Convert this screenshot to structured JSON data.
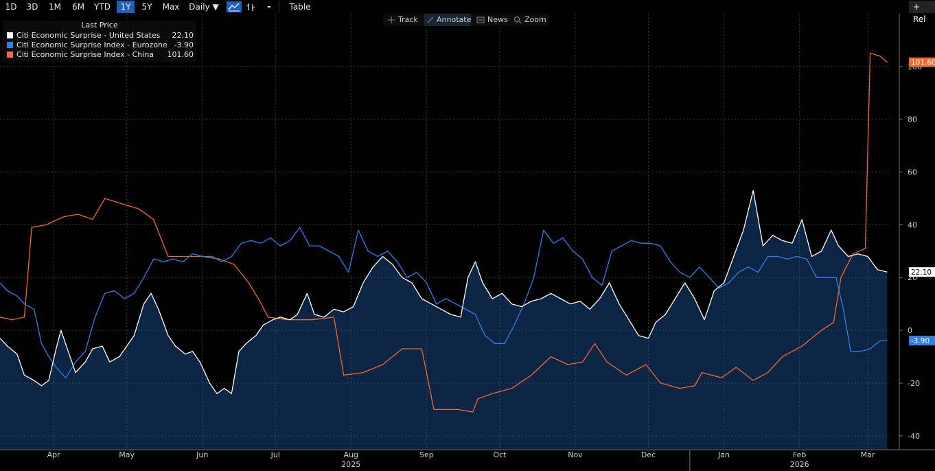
{
  "toolbar": {
    "ranges": [
      "1D",
      "3D",
      "1M",
      "6M",
      "YTD",
      "1Y",
      "5Y",
      "Max"
    ],
    "active_range": "1Y",
    "frequency": "Daily ▼",
    "table_label": "Table",
    "rel_label": "+ Rel"
  },
  "overlay": {
    "track": "Track",
    "annotate": "Annotate",
    "news": "News",
    "zoom": "Zoom"
  },
  "legend": {
    "header": "Last Price",
    "rows": [
      {
        "name": "Citi Economic Surprise - United States",
        "value": "22.10",
        "color": "#ffffff"
      },
      {
        "name": "Citi Economic Surprise Index - Eurozone",
        "value": "-3.90",
        "color": "#2f7fe8"
      },
      {
        "name": "Citi Economic Surprise Index - China",
        "value": "101.60",
        "color": "#ef6a32"
      }
    ]
  },
  "chart_data": {
    "type": "line",
    "x_range": [
      "2025-03-24",
      "2026-03-24"
    ],
    "ylim": [
      -45,
      120
    ],
    "yticks": [
      -40,
      -20,
      0,
      20,
      40,
      60,
      80,
      100
    ],
    "month_labels": [
      {
        "label": "Apr",
        "date": "2025-04-15"
      },
      {
        "label": "May",
        "date": "2025-05-15"
      },
      {
        "label": "Jun",
        "date": "2025-06-15"
      },
      {
        "label": "Jul",
        "date": "2025-07-15"
      },
      {
        "label": "Aug",
        "date": "2025-08-15"
      },
      {
        "label": "Sep",
        "date": "2025-09-15"
      },
      {
        "label": "Oct",
        "date": "2025-10-15"
      },
      {
        "label": "Nov",
        "date": "2025-11-15"
      },
      {
        "label": "Dec",
        "date": "2025-12-15"
      },
      {
        "label": "Jan",
        "date": "2026-01-15"
      },
      {
        "label": "Feb",
        "date": "2026-02-15"
      },
      {
        "label": "Mar",
        "date": "2026-03-15"
      }
    ],
    "year_labels": [
      {
        "label": "2025",
        "date": "2025-08-15"
      },
      {
        "label": "2026",
        "date": "2026-02-15"
      }
    ],
    "grid": true,
    "legend_position": "top-left",
    "series": [
      {
        "name": "Citi Economic Surprise - United States",
        "color": "#ffffff",
        "fill": "#0d2545",
        "last_label": "22.10",
        "points": [
          [
            "2025-03-24",
            -3
          ],
          [
            "2025-03-27",
            -6
          ],
          [
            "2025-03-31",
            -9
          ],
          [
            "2025-04-03",
            -17
          ],
          [
            "2025-04-07",
            -19
          ],
          [
            "2025-04-10",
            -21
          ],
          [
            "2025-04-13",
            -19
          ],
          [
            "2025-04-16",
            -7
          ],
          [
            "2025-04-18",
            0
          ],
          [
            "2025-04-21",
            -8
          ],
          [
            "2025-04-24",
            -16
          ],
          [
            "2025-04-28",
            -12
          ],
          [
            "2025-05-01",
            -7
          ],
          [
            "2025-05-05",
            -6
          ],
          [
            "2025-05-08",
            -12
          ],
          [
            "2025-05-12",
            -10
          ],
          [
            "2025-05-15",
            -6
          ],
          [
            "2025-05-18",
            -2
          ],
          [
            "2025-05-22",
            10
          ],
          [
            "2025-05-25",
            14
          ],
          [
            "2025-05-28",
            8
          ],
          [
            "2025-06-01",
            -2
          ],
          [
            "2025-06-04",
            -6
          ],
          [
            "2025-06-08",
            -9
          ],
          [
            "2025-06-11",
            -8
          ],
          [
            "2025-06-14",
            -12
          ],
          [
            "2025-06-18",
            -20
          ],
          [
            "2025-06-21",
            -24
          ],
          [
            "2025-06-24",
            -22
          ],
          [
            "2025-06-27",
            -24
          ],
          [
            "2025-06-30",
            -8
          ],
          [
            "2025-07-03",
            -5
          ],
          [
            "2025-07-07",
            -2
          ],
          [
            "2025-07-10",
            2
          ],
          [
            "2025-07-14",
            4
          ],
          [
            "2025-07-17",
            5
          ],
          [
            "2025-07-21",
            4
          ],
          [
            "2025-07-24",
            6
          ],
          [
            "2025-07-28",
            14
          ],
          [
            "2025-07-31",
            6
          ],
          [
            "2025-08-04",
            5
          ],
          [
            "2025-08-08",
            8
          ],
          [
            "2025-08-12",
            7
          ],
          [
            "2025-08-16",
            9
          ],
          [
            "2025-08-20",
            18
          ],
          [
            "2025-08-24",
            24
          ],
          [
            "2025-08-28",
            28
          ],
          [
            "2025-09-01",
            25
          ],
          [
            "2025-09-05",
            20
          ],
          [
            "2025-09-09",
            18
          ],
          [
            "2025-09-13",
            12
          ],
          [
            "2025-09-17",
            10
          ],
          [
            "2025-09-21",
            8
          ],
          [
            "2025-09-25",
            6
          ],
          [
            "2025-09-29",
            5
          ],
          [
            "2025-10-02",
            20
          ],
          [
            "2025-10-05",
            26
          ],
          [
            "2025-10-08",
            18
          ],
          [
            "2025-10-12",
            12
          ],
          [
            "2025-10-16",
            14
          ],
          [
            "2025-10-20",
            10
          ],
          [
            "2025-10-24",
            9
          ],
          [
            "2025-10-28",
            11
          ],
          [
            "2025-11-01",
            12
          ],
          [
            "2025-11-05",
            14
          ],
          [
            "2025-11-09",
            12
          ],
          [
            "2025-11-13",
            10
          ],
          [
            "2025-11-17",
            11
          ],
          [
            "2025-11-21",
            8
          ],
          [
            "2025-11-25",
            12
          ],
          [
            "2025-11-29",
            18
          ],
          [
            "2025-12-03",
            10
          ],
          [
            "2025-12-07",
            4
          ],
          [
            "2025-12-11",
            -2
          ],
          [
            "2025-12-15",
            -3
          ],
          [
            "2025-12-18",
            3
          ],
          [
            "2025-12-22",
            6
          ],
          [
            "2025-12-26",
            12
          ],
          [
            "2025-12-30",
            18
          ],
          [
            "2026-01-03",
            12
          ],
          [
            "2026-01-07",
            4
          ],
          [
            "2026-01-11",
            15
          ],
          [
            "2026-01-15",
            18
          ],
          [
            "2026-01-19",
            28
          ],
          [
            "2026-01-23",
            38
          ],
          [
            "2026-01-27",
            53
          ],
          [
            "2026-01-31",
            32
          ],
          [
            "2026-02-04",
            36
          ],
          [
            "2026-02-08",
            34
          ],
          [
            "2026-02-12",
            33
          ],
          [
            "2026-02-16",
            42
          ],
          [
            "2026-02-20",
            28
          ],
          [
            "2026-02-24",
            30
          ],
          [
            "2026-02-28",
            38
          ],
          [
            "2026-03-03",
            32
          ],
          [
            "2026-03-07",
            28
          ],
          [
            "2026-03-11",
            29
          ],
          [
            "2026-03-15",
            28
          ],
          [
            "2026-03-19",
            23
          ],
          [
            "2026-03-23",
            22.1
          ]
        ]
      },
      {
        "name": "Citi Economic Surprise Index - Eurozone",
        "color": "#2f7fe8",
        "last_label": "-3.90",
        "points": [
          [
            "2025-03-24",
            18
          ],
          [
            "2025-03-27",
            15
          ],
          [
            "2025-03-31",
            13
          ],
          [
            "2025-04-03",
            10
          ],
          [
            "2025-04-07",
            8
          ],
          [
            "2025-04-10",
            -5
          ],
          [
            "2025-04-13",
            -10
          ],
          [
            "2025-04-16",
            -14
          ],
          [
            "2025-04-20",
            -18
          ],
          [
            "2025-04-24",
            -12
          ],
          [
            "2025-04-28",
            -8
          ],
          [
            "2025-05-02",
            5
          ],
          [
            "2025-05-06",
            14
          ],
          [
            "2025-05-10",
            15
          ],
          [
            "2025-05-14",
            12
          ],
          [
            "2025-05-18",
            14
          ],
          [
            "2025-05-22",
            20
          ],
          [
            "2025-05-26",
            27
          ],
          [
            "2025-05-30",
            26
          ],
          [
            "2025-06-03",
            27
          ],
          [
            "2025-06-07",
            26
          ],
          [
            "2025-06-11",
            29
          ],
          [
            "2025-06-15",
            28
          ],
          [
            "2025-06-19",
            28
          ],
          [
            "2025-06-23",
            26
          ],
          [
            "2025-06-27",
            28
          ],
          [
            "2025-07-01",
            33
          ],
          [
            "2025-07-05",
            34
          ],
          [
            "2025-07-09",
            33
          ],
          [
            "2025-07-13",
            35
          ],
          [
            "2025-07-17",
            32
          ],
          [
            "2025-07-21",
            34
          ],
          [
            "2025-07-25",
            39
          ],
          [
            "2025-07-29",
            32
          ],
          [
            "2025-08-02",
            32
          ],
          [
            "2025-08-06",
            30
          ],
          [
            "2025-08-10",
            28
          ],
          [
            "2025-08-14",
            22
          ],
          [
            "2025-08-18",
            38
          ],
          [
            "2025-08-22",
            30
          ],
          [
            "2025-08-26",
            28
          ],
          [
            "2025-08-30",
            30
          ],
          [
            "2025-09-03",
            26
          ],
          [
            "2025-09-07",
            20
          ],
          [
            "2025-09-11",
            22
          ],
          [
            "2025-09-15",
            18
          ],
          [
            "2025-09-19",
            10
          ],
          [
            "2025-09-23",
            12
          ],
          [
            "2025-09-27",
            10
          ],
          [
            "2025-10-01",
            8
          ],
          [
            "2025-10-05",
            6
          ],
          [
            "2025-10-09",
            -2
          ],
          [
            "2025-10-13",
            -5
          ],
          [
            "2025-10-17",
            -5
          ],
          [
            "2025-10-21",
            2
          ],
          [
            "2025-10-25",
            10
          ],
          [
            "2025-10-29",
            20
          ],
          [
            "2025-11-02",
            38
          ],
          [
            "2025-11-06",
            33
          ],
          [
            "2025-11-10",
            35
          ],
          [
            "2025-11-14",
            30
          ],
          [
            "2025-11-18",
            27
          ],
          [
            "2025-11-22",
            20
          ],
          [
            "2025-11-26",
            17
          ],
          [
            "2025-11-30",
            30
          ],
          [
            "2025-12-04",
            32
          ],
          [
            "2025-12-08",
            34
          ],
          [
            "2025-12-12",
            33
          ],
          [
            "2025-12-16",
            33
          ],
          [
            "2025-12-20",
            32
          ],
          [
            "2025-12-24",
            26
          ],
          [
            "2025-12-28",
            22
          ],
          [
            "2026-01-01",
            20
          ],
          [
            "2026-01-05",
            24
          ],
          [
            "2026-01-09",
            20
          ],
          [
            "2026-01-13",
            16
          ],
          [
            "2026-01-17",
            18
          ],
          [
            "2026-01-21",
            22
          ],
          [
            "2026-01-25",
            24
          ],
          [
            "2026-01-29",
            22
          ],
          [
            "2026-02-02",
            28
          ],
          [
            "2026-02-06",
            28
          ],
          [
            "2026-02-10",
            27
          ],
          [
            "2026-02-14",
            28
          ],
          [
            "2026-02-18",
            27
          ],
          [
            "2026-02-22",
            20
          ],
          [
            "2026-02-26",
            20
          ],
          [
            "2026-03-02",
            20
          ],
          [
            "2026-03-05",
            8
          ],
          [
            "2026-03-08",
            -8
          ],
          [
            "2026-03-12",
            -8
          ],
          [
            "2026-03-16",
            -7
          ],
          [
            "2026-03-20",
            -4
          ],
          [
            "2026-03-23",
            -3.9
          ]
        ]
      },
      {
        "name": "Citi Economic Surprise Index - China",
        "color": "#ef6a32",
        "last_label": "101.60",
        "points": [
          [
            "2025-03-24",
            5
          ],
          [
            "2025-03-29",
            4
          ],
          [
            "2025-04-03",
            5
          ],
          [
            "2025-04-06",
            39
          ],
          [
            "2025-04-12",
            40
          ],
          [
            "2025-04-19",
            43
          ],
          [
            "2025-04-25",
            44
          ],
          [
            "2025-05-01",
            42
          ],
          [
            "2025-05-06",
            50
          ],
          [
            "2025-05-13",
            48
          ],
          [
            "2025-05-20",
            46
          ],
          [
            "2025-05-26",
            42
          ],
          [
            "2025-06-01",
            28
          ],
          [
            "2025-06-08",
            28
          ],
          [
            "2025-06-15",
            28
          ],
          [
            "2025-06-22",
            27
          ],
          [
            "2025-06-28",
            25
          ],
          [
            "2025-07-04",
            18
          ],
          [
            "2025-07-08",
            12
          ],
          [
            "2025-07-12",
            5
          ],
          [
            "2025-07-20",
            4
          ],
          [
            "2025-07-30",
            4
          ],
          [
            "2025-08-08",
            5
          ],
          [
            "2025-08-12",
            -17
          ],
          [
            "2025-08-20",
            -16
          ],
          [
            "2025-08-28",
            -13
          ],
          [
            "2025-09-05",
            -7
          ],
          [
            "2025-09-13",
            -7
          ],
          [
            "2025-09-18",
            -30
          ],
          [
            "2025-09-28",
            -30
          ],
          [
            "2025-10-04",
            -31
          ],
          [
            "2025-10-06",
            -26
          ],
          [
            "2025-10-12",
            -24
          ],
          [
            "2025-10-20",
            -22
          ],
          [
            "2025-10-28",
            -17
          ],
          [
            "2025-11-05",
            -10
          ],
          [
            "2025-11-12",
            -13
          ],
          [
            "2025-11-18",
            -12
          ],
          [
            "2025-11-23",
            -5
          ],
          [
            "2025-11-28",
            -12
          ],
          [
            "2025-12-06",
            -17
          ],
          [
            "2025-12-14",
            -13
          ],
          [
            "2025-12-20",
            -20
          ],
          [
            "2025-12-28",
            -22
          ],
          [
            "2026-01-03",
            -21
          ],
          [
            "2026-01-06",
            -16
          ],
          [
            "2026-01-14",
            -18
          ],
          [
            "2026-01-20",
            -14
          ],
          [
            "2026-01-27",
            -19
          ],
          [
            "2026-02-02",
            -16
          ],
          [
            "2026-02-08",
            -10
          ],
          [
            "2026-02-16",
            -6
          ],
          [
            "2026-02-24",
            0
          ],
          [
            "2026-03-01",
            3
          ],
          [
            "2026-03-04",
            20
          ],
          [
            "2026-03-09",
            29
          ],
          [
            "2026-03-14",
            31
          ],
          [
            "2026-03-16",
            105
          ],
          [
            "2026-03-20",
            104
          ],
          [
            "2026-03-23",
            101.6
          ]
        ]
      }
    ]
  }
}
